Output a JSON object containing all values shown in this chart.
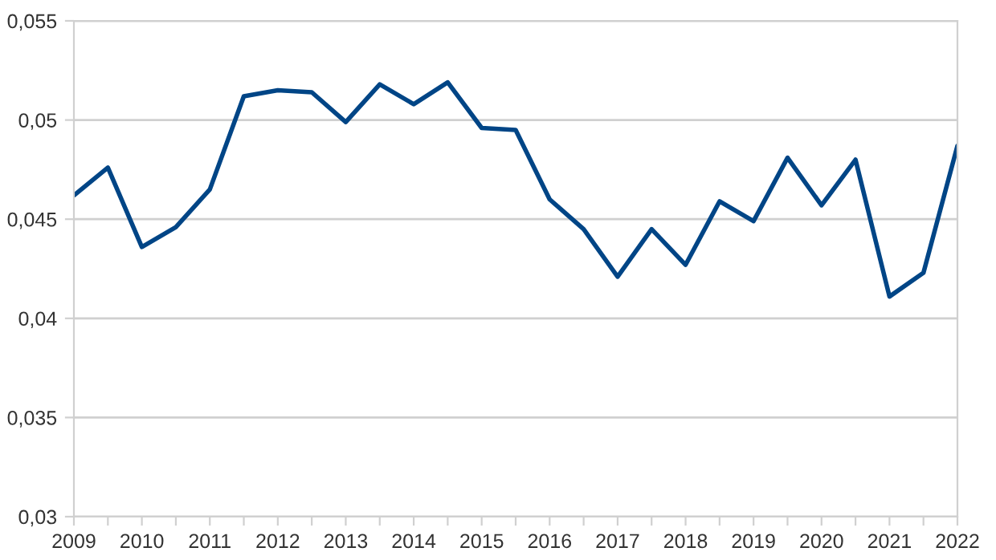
{
  "chart_data": {
    "type": "line",
    "x": [
      2009,
      2009.5,
      2010,
      2010.5,
      2011,
      2011.5,
      2012,
      2012.5,
      2013,
      2013.5,
      2014,
      2014.5,
      2015,
      2015.5,
      2016,
      2016.5,
      2017,
      2017.5,
      2018,
      2018.5,
      2019,
      2019.5,
      2020,
      2020.5,
      2021,
      2021.5,
      2022
    ],
    "series": [
      {
        "color": "#004586",
        "values": [
          0.0462,
          0.0476,
          0.0436,
          0.0446,
          0.0465,
          0.0512,
          0.0515,
          0.0514,
          0.0499,
          0.0518,
          0.0508,
          0.0519,
          0.0496,
          0.0495,
          0.046,
          0.0445,
          0.0421,
          0.0445,
          0.0427,
          0.0459,
          0.0449,
          0.0481,
          0.0457,
          0.048,
          0.0411,
          0.0423,
          0.0487
        ]
      }
    ],
    "xlim": [
      2009,
      2022
    ],
    "xticks": [
      2009,
      {
        "value": 2009.5,
        "label": null
      },
      2010,
      {
        "value": 2010.5,
        "label": null
      },
      2011,
      {
        "value": 2011.5,
        "label": null
      },
      2012,
      {
        "value": 2012.5,
        "label": null
      },
      2013,
      {
        "value": 2013.5,
        "label": null
      },
      2014,
      {
        "value": 2014.5,
        "label": null
      },
      2015,
      {
        "value": 2015.5,
        "label": null
      },
      2016,
      {
        "value": 2016.5,
        "label": null
      },
      2017,
      {
        "value": 2017.5,
        "label": null
      },
      2018,
      {
        "value": 2018.5,
        "label": null
      },
      2019,
      {
        "value": 2019.5,
        "label": null
      },
      2020,
      {
        "value": 2020.5,
        "label": null
      },
      2021,
      {
        "value": 2021.5,
        "label": null
      },
      2022
    ],
    "ylim": [
      0.03,
      0.055
    ],
    "yticks": [
      {
        "value": 0.03,
        "label": "0,03"
      },
      {
        "value": 0.035,
        "label": "0,035"
      },
      {
        "value": 0.04,
        "label": "0,04"
      },
      {
        "value": 0.045,
        "label": "0,045"
      },
      {
        "value": 0.05,
        "label": "0,05"
      },
      {
        "value": 0.055,
        "label": "0,055"
      }
    ],
    "grid": "y",
    "marker": "none",
    "line_style": "solid"
  }
}
